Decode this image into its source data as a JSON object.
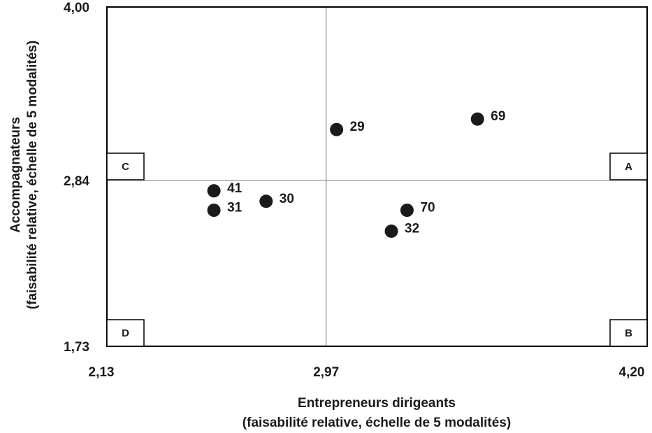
{
  "chart_data": {
    "type": "scatter",
    "title": "",
    "xlabel": "Entrepreneurs dirigeants",
    "xlabel_sub": "(faisabilité relative, échelle de 5 modalités)",
    "ylabel": "Accompagnateurs",
    "ylabel_sub": "(faisabilité relative, échelle de 5 modalités)",
    "xlim": [
      2.13,
      4.2
    ],
    "ylim": [
      1.73,
      4.0
    ],
    "x_ticks": [
      {
        "value": 2.13,
        "label": "2,13"
      },
      {
        "value": 2.97,
        "label": "2,97"
      },
      {
        "value": 4.2,
        "label": "4,20"
      }
    ],
    "y_ticks": [
      {
        "value": 1.73,
        "label": "1,73"
      },
      {
        "value": 2.84,
        "label": "2,84"
      },
      {
        "value": 4.0,
        "label": "4,00"
      }
    ],
    "reference_lines": {
      "x": 2.97,
      "y": 2.84
    },
    "quadrants": [
      {
        "id": "A",
        "label": "A",
        "position": "right-middle"
      },
      {
        "id": "B",
        "label": "B",
        "position": "bottom-right"
      },
      {
        "id": "C",
        "label": "C",
        "position": "left-middle"
      },
      {
        "id": "D",
        "label": "D",
        "position": "bottom-left"
      }
    ],
    "points": [
      {
        "label": "29",
        "x": 3.01,
        "y": 3.18
      },
      {
        "label": "69",
        "x": 3.55,
        "y": 3.25
      },
      {
        "label": "41",
        "x": 2.54,
        "y": 2.77
      },
      {
        "label": "31",
        "x": 2.54,
        "y": 2.64
      },
      {
        "label": "30",
        "x": 2.74,
        "y": 2.7
      },
      {
        "label": "70",
        "x": 3.28,
        "y": 2.64
      },
      {
        "label": "32",
        "x": 3.22,
        "y": 2.5
      }
    ],
    "grid": false,
    "legend": "none",
    "colors": {
      "marker": "#1a1a1a",
      "frame": "#000000",
      "reference_line": "#a6a6a6",
      "text": "#1a1a1a"
    }
  }
}
